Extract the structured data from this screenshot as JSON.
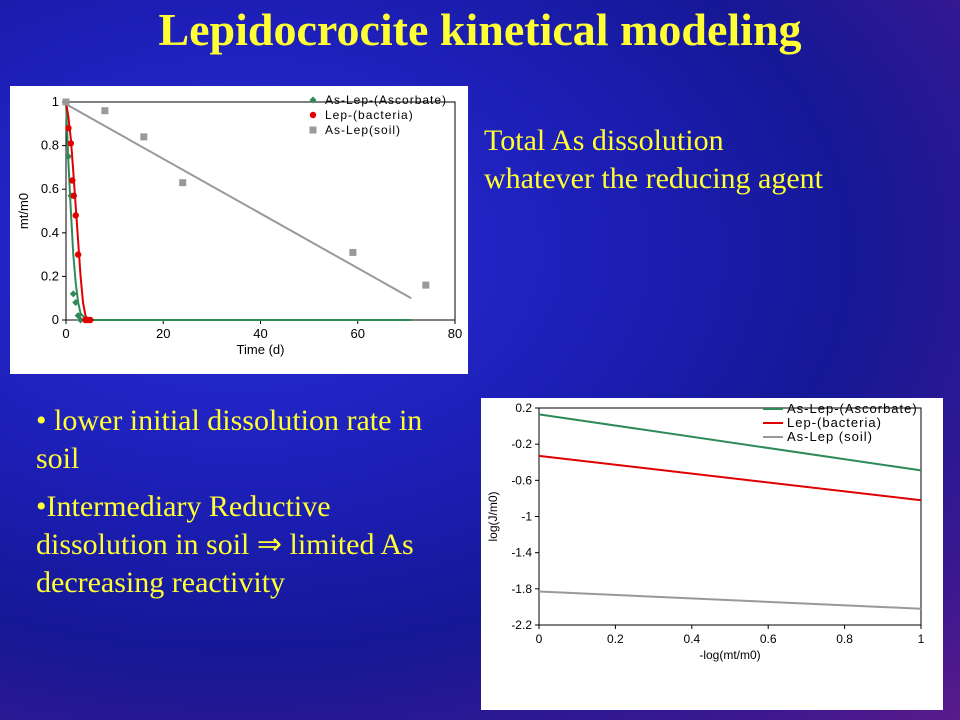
{
  "slide": {
    "title": "Lepidocrocite kinetical modeling",
    "note_line1": "Total  As dissolution",
    "note_line2": "whatever the reducing agent",
    "bullet1": "• lower  initial dissolution rate in soil",
    "bullet2": "•Intermediary Reductive dissolution  in soil  ⇒  limited As decreasing reactivity"
  },
  "colors": {
    "title": "#ffff33",
    "ascorbate": "#2e8b57",
    "bacteria": "#e00000",
    "soil": "#999999"
  },
  "chart_data": [
    {
      "type": "scatter",
      "title": "",
      "xlabel": "Time (d)",
      "ylabel": "mt/m0",
      "xlim": [
        0,
        80
      ],
      "ylim": [
        0,
        1
      ],
      "xticks": [
        0,
        20,
        40,
        60,
        80
      ],
      "yticks": [
        0,
        0.2,
        0.4,
        0.6,
        0.8,
        1
      ],
      "xtick_labels": [
        "0",
        "20",
        "40",
        "60",
        "80"
      ],
      "ytick_labels": [
        "0",
        "0.2",
        "0.4",
        "0.6",
        "0.8",
        "1"
      ],
      "legend": "top-right",
      "grid": false,
      "series": [
        {
          "name": "As-Lep-(Ascorbate)",
          "color": "#2e8b57",
          "marker": "diamond",
          "points": [
            [
              0,
              1
            ],
            [
              0.5,
              0.75
            ],
            [
              1,
              0.57
            ],
            [
              1.5,
              0.12
            ],
            [
              2,
              0.08
            ],
            [
              2.5,
              0.02
            ],
            [
              3,
              0.0
            ]
          ],
          "model": [
            [
              0,
              1
            ],
            [
              0.5,
              0.72
            ],
            [
              1,
              0.5
            ],
            [
              1.5,
              0.3
            ],
            [
              2,
              0.17
            ],
            [
              2.5,
              0.08
            ],
            [
              3,
              0.03
            ],
            [
              4,
              0.005
            ],
            [
              5,
              0
            ],
            [
              71,
              0
            ]
          ]
        },
        {
          "name": "Lep-(bacteria)",
          "color": "#e00000",
          "marker": "circle",
          "points": [
            [
              0.5,
              0.88
            ],
            [
              1,
              0.81
            ],
            [
              1.3,
              0.64
            ],
            [
              1.6,
              0.57
            ],
            [
              2,
              0.48
            ],
            [
              2.5,
              0.3
            ],
            [
              4,
              0.0
            ],
            [
              4.5,
              0.0
            ],
            [
              5,
              0.0
            ]
          ],
          "model": [
            [
              0,
              1
            ],
            [
              0.5,
              0.93
            ],
            [
              1,
              0.83
            ],
            [
              1.5,
              0.68
            ],
            [
              2,
              0.52
            ],
            [
              2.5,
              0.36
            ],
            [
              3,
              0.2
            ],
            [
              3.5,
              0.08
            ],
            [
              4,
              0.02
            ],
            [
              4.5,
              0
            ],
            [
              5,
              0
            ]
          ]
        },
        {
          "name": "As-Lep(soil)",
          "color": "#999999",
          "marker": "square",
          "points": [
            [
              0,
              1
            ],
            [
              8,
              0.96
            ],
            [
              16,
              0.84
            ],
            [
              24,
              0.63
            ],
            [
              59,
              0.31
            ],
            [
              74,
              0.16
            ]
          ],
          "model": [
            [
              0,
              0.99
            ],
            [
              71,
              0.1
            ]
          ]
        }
      ]
    },
    {
      "type": "line",
      "title": "",
      "xlabel": "-log(mt/m0)",
      "ylabel": "log(J/m0)",
      "xlim": [
        0,
        1
      ],
      "ylim": [
        -2.2,
        0.2
      ],
      "xticks": [
        0,
        0.2,
        0.4,
        0.6,
        0.8,
        1
      ],
      "yticks": [
        -2.2,
        -1.8,
        -1.4,
        -1,
        -0.6,
        -0.2,
        0.2
      ],
      "xtick_labels": [
        "0",
        "0.2",
        "0.4",
        "0.6",
        "0.8",
        "1"
      ],
      "ytick_labels": [
        "-2.2",
        "-1.8",
        "-1.4",
        "-1",
        "-0.6",
        "-0.2",
        "0.2"
      ],
      "legend": "top-right",
      "grid": false,
      "series": [
        {
          "name": "As-Lep-(Ascorbate)",
          "color": "#2e8b57",
          "x": [
            0,
            1
          ],
          "y": [
            0.13,
            -0.49
          ]
        },
        {
          "name": "Lep-(bacteria)",
          "color": "#e00000",
          "x": [
            0,
            1
          ],
          "y": [
            -0.33,
            -0.82
          ]
        },
        {
          "name": "As-Lep (soil)",
          "color": "#999999",
          "x": [
            0,
            1
          ],
          "y": [
            -1.83,
            -2.02
          ]
        }
      ]
    }
  ]
}
